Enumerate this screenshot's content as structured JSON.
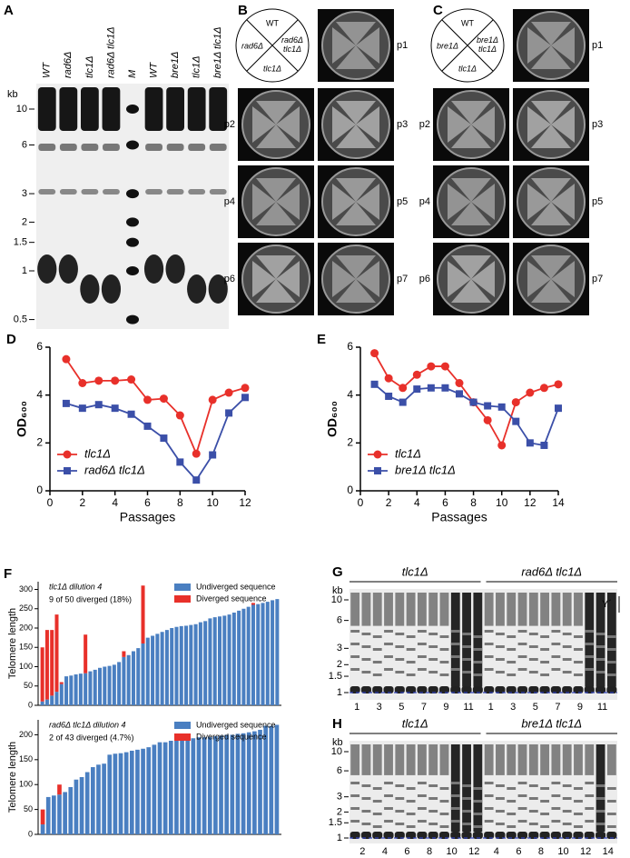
{
  "figure": {
    "A": {
      "label": "A",
      "lanes": [
        "WT",
        "rad6Δ",
        "tlc1Δ",
        "rad6Δ tlc1Δ",
        "M",
        "WT",
        "bre1Δ",
        "tlc1Δ",
        "bre1Δ tlc1Δ"
      ],
      "kb": "kb",
      "markers": [
        10,
        6,
        3,
        2,
        1.5,
        1,
        0.5
      ]
    },
    "B": {
      "label": "B",
      "sectors": [
        "WT",
        "rad6Δ",
        "rad6Δ tlc1Δ",
        "tlc1Δ"
      ],
      "plates": [
        "p1",
        "p2",
        "p3",
        "p4",
        "p5",
        "p6",
        "p7"
      ]
    },
    "C": {
      "label": "C",
      "sectors": [
        "WT",
        "bre1Δ",
        "bre1Δ tlc1Δ",
        "tlc1Δ"
      ],
      "plates": [
        "p1",
        "p2",
        "p3",
        "p4",
        "p5",
        "p6",
        "p7"
      ]
    },
    "G": {
      "label": "G",
      "groups": [
        "tlc1Δ",
        "rad6Δ tlc1Δ"
      ],
      "kb": "kb",
      "markers": [
        10,
        6,
        3,
        2,
        1.5,
        1
      ],
      "bracket": "Y´",
      "lanes": [
        [
          1,
          3,
          5,
          7,
          9,
          11
        ],
        [
          1,
          3,
          5,
          7,
          9,
          11
        ]
      ]
    },
    "H": {
      "label": "H",
      "groups": [
        "tlc1Δ",
        "bre1Δ tlc1Δ"
      ],
      "kb": "kb",
      "markers": [
        10,
        6,
        3,
        2,
        1.5,
        1
      ],
      "lanes": [
        [
          2,
          4,
          6,
          8,
          10,
          12
        ],
        [
          4,
          6,
          8,
          10,
          12,
          14
        ]
      ]
    }
  },
  "chart_data": [
    {
      "panel": "D",
      "type": "line",
      "x_label": "Passages",
      "y_label": "OD₆₀₀",
      "x": [
        1,
        2,
        3,
        4,
        5,
        6,
        7,
        8,
        9,
        10,
        11,
        12
      ],
      "xlim": [
        0,
        12
      ],
      "xticks": [
        0,
        2,
        4,
        6,
        8,
        10,
        12
      ],
      "ylim": [
        0,
        6
      ],
      "yticks": [
        0,
        2,
        4,
        6
      ],
      "legend": "lower left",
      "series": [
        {
          "name": "tlc1Δ",
          "color": "#e8302a",
          "marker": "circle",
          "values": [
            5.5,
            4.5,
            4.6,
            4.6,
            4.65,
            3.8,
            3.85,
            3.15,
            1.55,
            3.8,
            4.1,
            4.3
          ]
        },
        {
          "name": "rad6Δ tlc1Δ",
          "color": "#3b4fa8",
          "marker": "square",
          "values": [
            3.65,
            3.45,
            3.6,
            3.45,
            3.2,
            2.7,
            2.2,
            1.2,
            0.45,
            1.5,
            3.25,
            3.9
          ]
        }
      ]
    },
    {
      "panel": "E",
      "type": "line",
      "x_label": "Passages",
      "y_label": "OD₆₀₀",
      "x": [
        1,
        2,
        3,
        4,
        5,
        6,
        7,
        8,
        9,
        10,
        11,
        12,
        13,
        14
      ],
      "xlim": [
        0,
        14
      ],
      "xticks": [
        0,
        2,
        4,
        6,
        8,
        10,
        12,
        14
      ],
      "ylim": [
        0,
        6
      ],
      "yticks": [
        0,
        2,
        4,
        6
      ],
      "legend": "lower left",
      "series": [
        {
          "name": "tlc1Δ",
          "color": "#e8302a",
          "marker": "circle",
          "values": [
            5.75,
            4.7,
            4.3,
            4.85,
            5.2,
            5.2,
            4.5,
            3.7,
            2.95,
            1.9,
            3.7,
            4.1,
            4.3,
            4.45
          ]
        },
        {
          "name": "bre1Δ tlc1Δ",
          "color": "#3b4fa8",
          "marker": "square",
          "values": [
            4.45,
            3.95,
            3.7,
            4.25,
            4.3,
            4.3,
            4.05,
            3.7,
            3.55,
            3.5,
            2.9,
            2.0,
            1.9,
            3.45
          ]
        }
      ]
    },
    {
      "panel": "F",
      "type": "bar",
      "stacked": true,
      "y_label": "Telomere length",
      "annotations": [
        "tlc1Δ dilution 4",
        "9 of 50 diverged (18%)"
      ],
      "ylim": [
        0,
        320
      ],
      "yticks": [
        0,
        50,
        100,
        150,
        200,
        250,
        300
      ],
      "legend": "upper right",
      "series": [
        {
          "name": "Undiverged sequence",
          "color": "#4a7fc1",
          "values": [
            10,
            15,
            25,
            35,
            55,
            75,
            77,
            80,
            82,
            83,
            88,
            92,
            97,
            100,
            102,
            105,
            112,
            125,
            130,
            140,
            148,
            160,
            175,
            180,
            185,
            190,
            195,
            200,
            203,
            205,
            206,
            208,
            210,
            215,
            218,
            225,
            228,
            230,
            232,
            235,
            240,
            245,
            250,
            255,
            260,
            262,
            265,
            268,
            272,
            275
          ]
        },
        {
          "name": "Diverged sequence",
          "color": "#e8302a",
          "values": [
            140,
            180,
            170,
            200,
            5,
            0,
            0,
            0,
            0,
            100,
            0,
            0,
            0,
            0,
            0,
            0,
            0,
            15,
            0,
            0,
            0,
            150,
            0,
            0,
            0,
            0,
            0,
            0,
            0,
            0,
            0,
            0,
            0,
            0,
            0,
            0,
            0,
            0,
            0,
            0,
            0,
            0,
            0,
            0,
            5,
            0,
            0,
            0,
            0,
            0
          ]
        }
      ]
    },
    {
      "type": "bar",
      "stacked": true,
      "y_label": "Telomere length",
      "annotations": [
        "rad6Δ tlc1Δ dilution 4",
        "2 of 43 diverged (4.7%)"
      ],
      "ylim": [
        0,
        230
      ],
      "yticks": [
        0,
        50,
        100,
        150,
        200
      ],
      "legend": "upper right",
      "series": [
        {
          "name": "Undiverged sequence",
          "color": "#4a7fc1",
          "values": [
            20,
            75,
            78,
            80,
            85,
            95,
            110,
            115,
            125,
            135,
            140,
            142,
            160,
            162,
            163,
            165,
            168,
            170,
            172,
            175,
            180,
            185,
            185,
            188,
            190,
            190,
            192,
            193,
            195,
            195,
            196,
            197,
            198,
            200,
            200,
            202,
            203,
            205,
            207,
            210,
            218,
            218,
            220
          ]
        },
        {
          "name": "Diverged sequence",
          "color": "#e8302a",
          "values": [
            30,
            0,
            0,
            20,
            0,
            0,
            0,
            0,
            0,
            0,
            0,
            0,
            0,
            0,
            0,
            0,
            0,
            0,
            0,
            0,
            0,
            0,
            0,
            0,
            0,
            0,
            0,
            0,
            0,
            0,
            0,
            0,
            0,
            0,
            0,
            0,
            0,
            0,
            0,
            0,
            0,
            0,
            0
          ]
        }
      ]
    }
  ]
}
